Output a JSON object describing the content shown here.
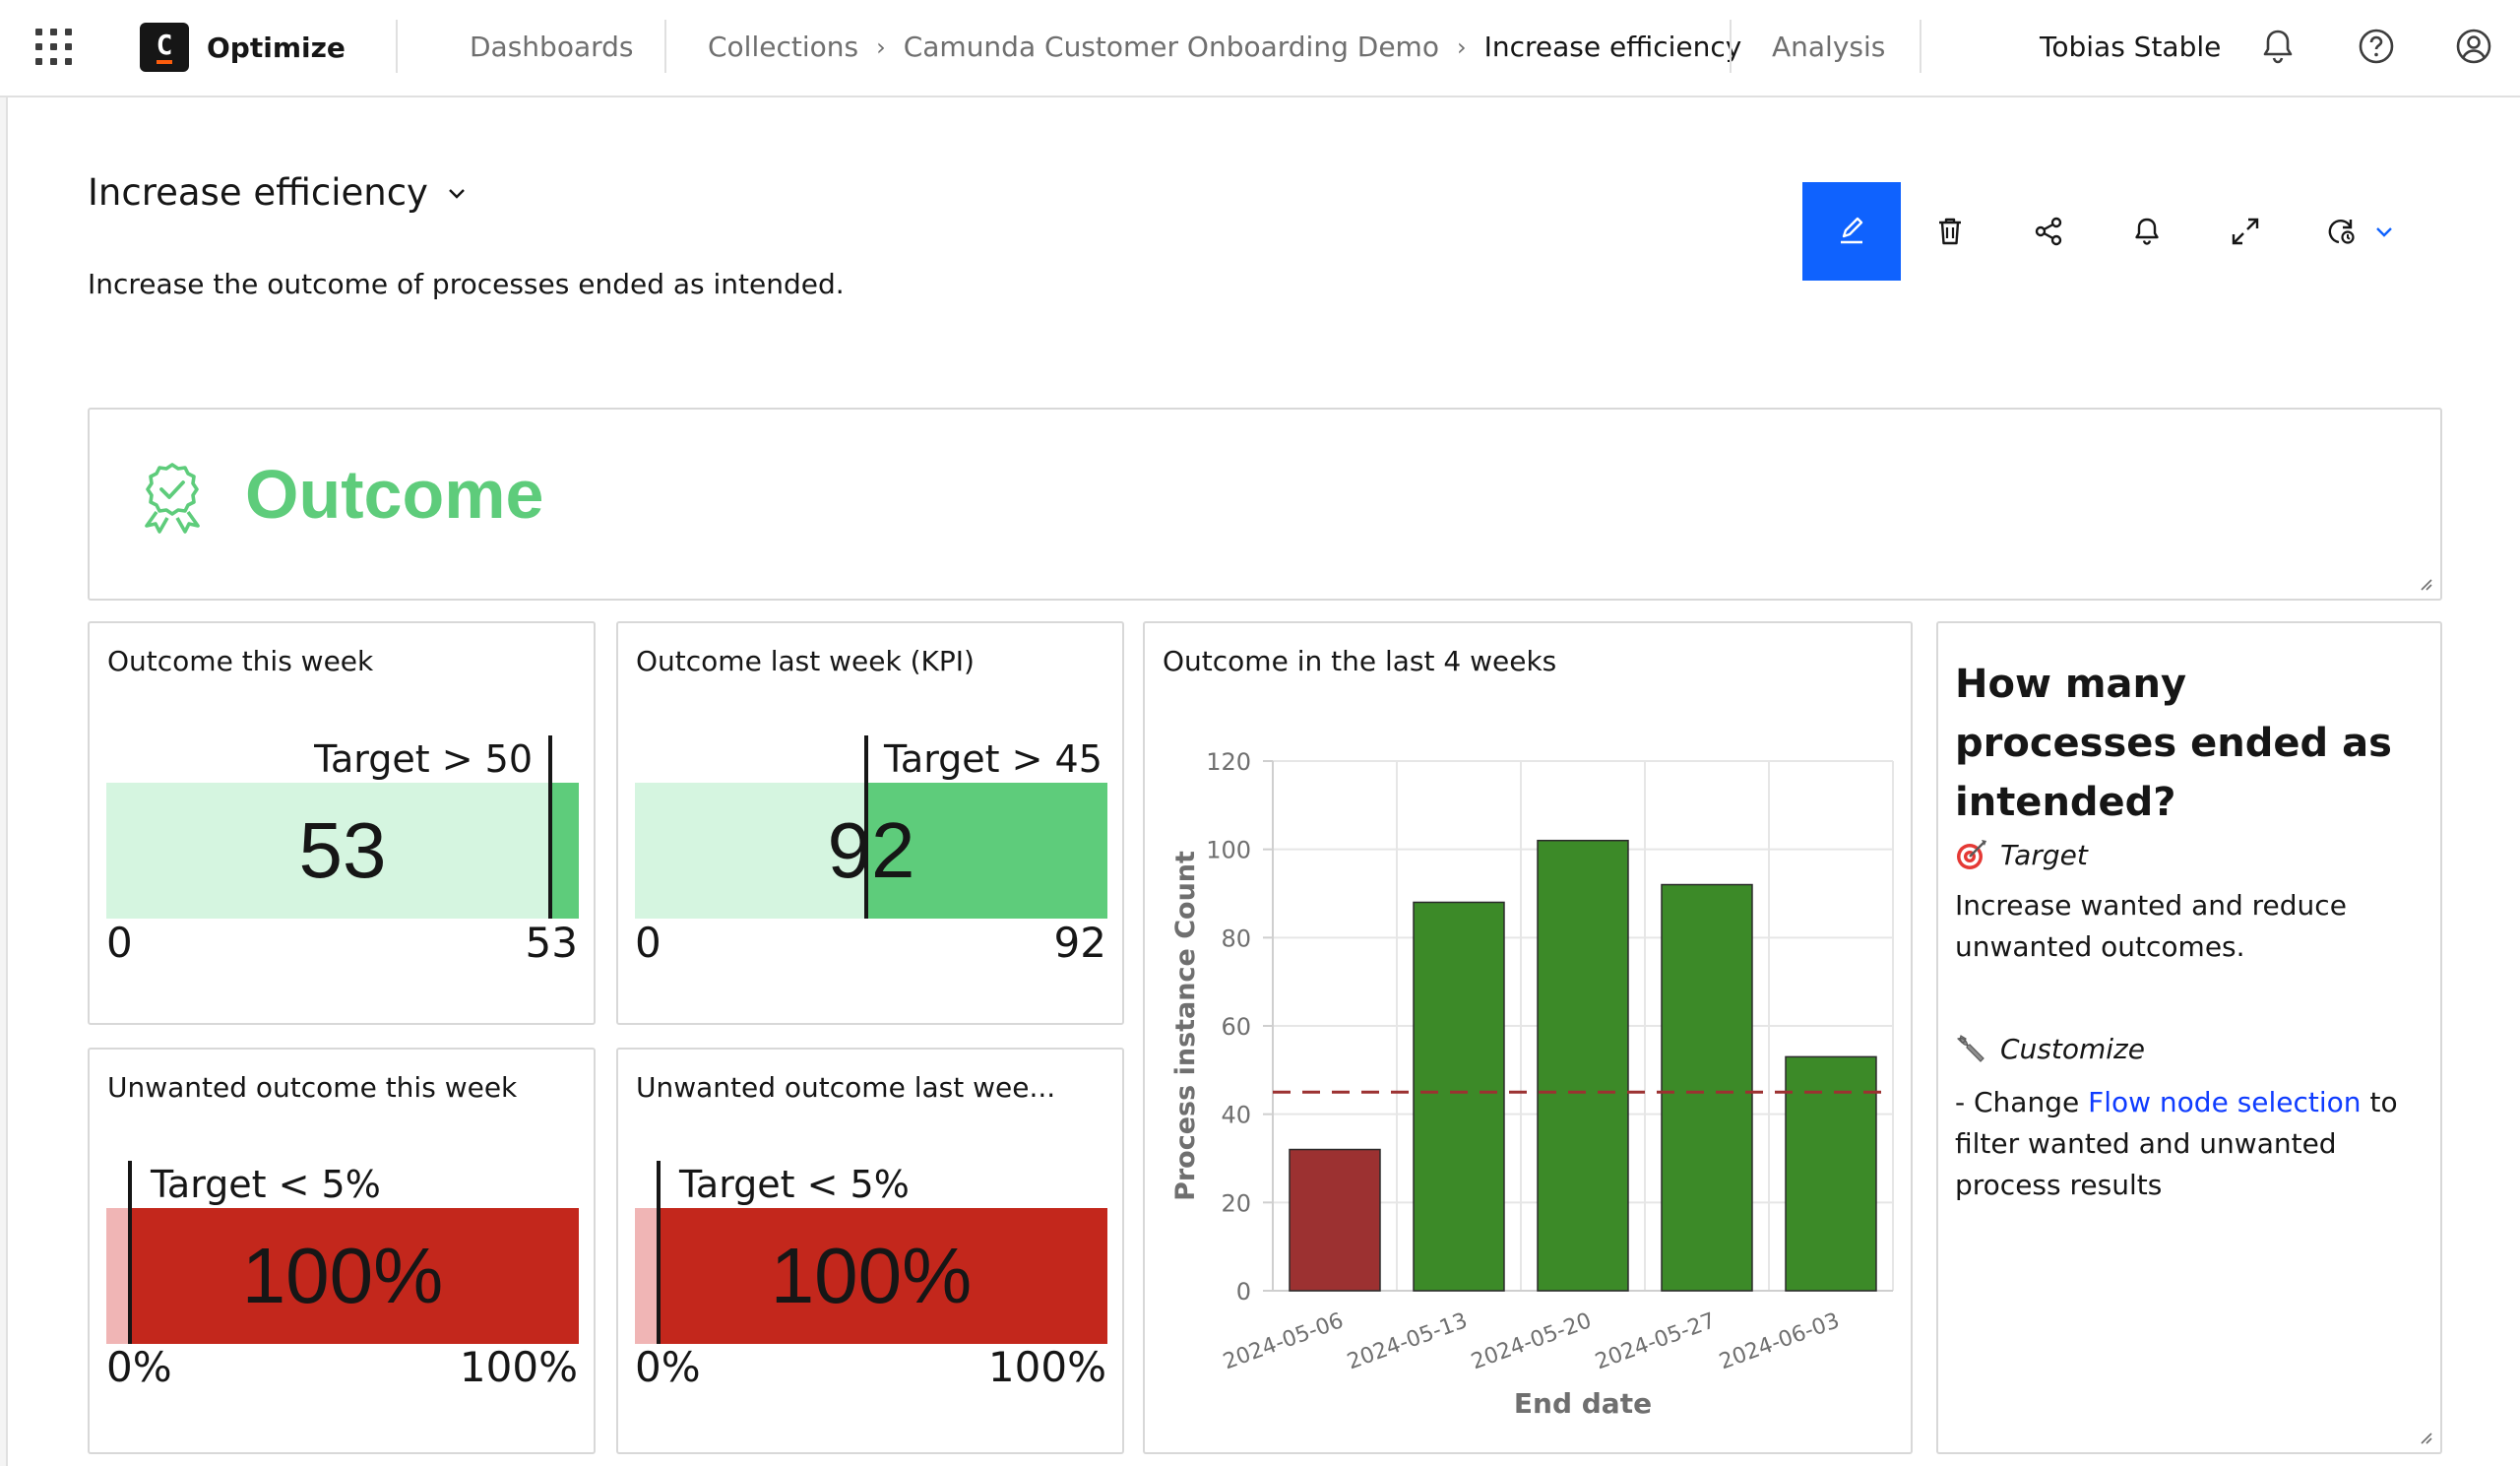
{
  "app": {
    "name": "Optimize"
  },
  "nav": {
    "dashboards": "Dashboards",
    "breadcrumb": [
      "Collections",
      "Camunda Customer Onboarding Demo",
      "Increase efficiency"
    ],
    "breadcrumb_separator": "›",
    "analysis": "Analysis"
  },
  "user": {
    "name": "Tobias Stable"
  },
  "header_icons": [
    "notification-icon",
    "help-icon",
    "user-avatar-icon"
  ],
  "dashboard": {
    "title": "Increase efficiency",
    "description": "Increase the outcome of processes ended as intended.",
    "toolbar_icons": [
      "edit-icon",
      "delete-icon",
      "share-icon",
      "alert-icon",
      "fullscreen-icon",
      "auto-refresh-icon",
      "chevron-down-icon"
    ]
  },
  "colors": {
    "accent": "#0f62fe",
    "good": "#5ecc7b",
    "good_light": "#d5f5e0",
    "bad": "#c3271c",
    "bad_light": "#f0b5b5",
    "bar_green": "#3c8a28",
    "bar_red": "#9c3131"
  },
  "section_heading": {
    "text": "Outcome",
    "icon": "award-badge-icon"
  },
  "kpis": [
    {
      "title": "Outcome this week",
      "target_label": "Target > 50",
      "value": "53",
      "min": "0",
      "max": "53",
      "fill_fraction": 1.0,
      "target_fraction": 0.94,
      "status": "met"
    },
    {
      "title": "Outcome last week (KPI)",
      "target_label": "Target > 45",
      "value": "92",
      "min": "0",
      "max": "92",
      "fill_fraction": 1.0,
      "target_fraction": 0.49,
      "status": "met"
    },
    {
      "title": "Unwanted outcome this week",
      "target_label": "Target < 5%",
      "value": "100%",
      "min": "0%",
      "max": "100%",
      "fill_fraction": 1.0,
      "target_fraction": 0.05,
      "status": "missed"
    },
    {
      "title": "Unwanted outcome last wee...",
      "target_label": "Target < 5%",
      "value": "100%",
      "min": "0%",
      "max": "100%",
      "fill_fraction": 1.0,
      "target_fraction": 0.05,
      "status": "missed"
    }
  ],
  "chart_tile": {
    "title": "Outcome in the last 4 weeks"
  },
  "chart_data": {
    "type": "bar",
    "categories": [
      "2024-05-06",
      "2024-05-13",
      "2024-05-20",
      "2024-05-27",
      "2024-06-03"
    ],
    "values": [
      32,
      88,
      102,
      92,
      53
    ],
    "bar_colors": [
      "#9c3131",
      "#3c8a28",
      "#3c8a28",
      "#3c8a28",
      "#3c8a28"
    ],
    "target_line": 45,
    "xlabel": "End date",
    "ylabel": "Process instance Count",
    "ylim": [
      0,
      120
    ],
    "yticks": [
      0,
      20,
      40,
      60,
      80,
      100,
      120
    ],
    "grid": true
  },
  "text_tile": {
    "question": "How many processes ended as intended?",
    "target_heading": "Target",
    "target_text": "Increase wanted and reduce unwanted outcomes.",
    "customize_heading": "Customize",
    "customize_prefix": "- Change ",
    "customize_link": "Flow node selection",
    "customize_suffix": " to filter wanted and unwanted process results"
  }
}
